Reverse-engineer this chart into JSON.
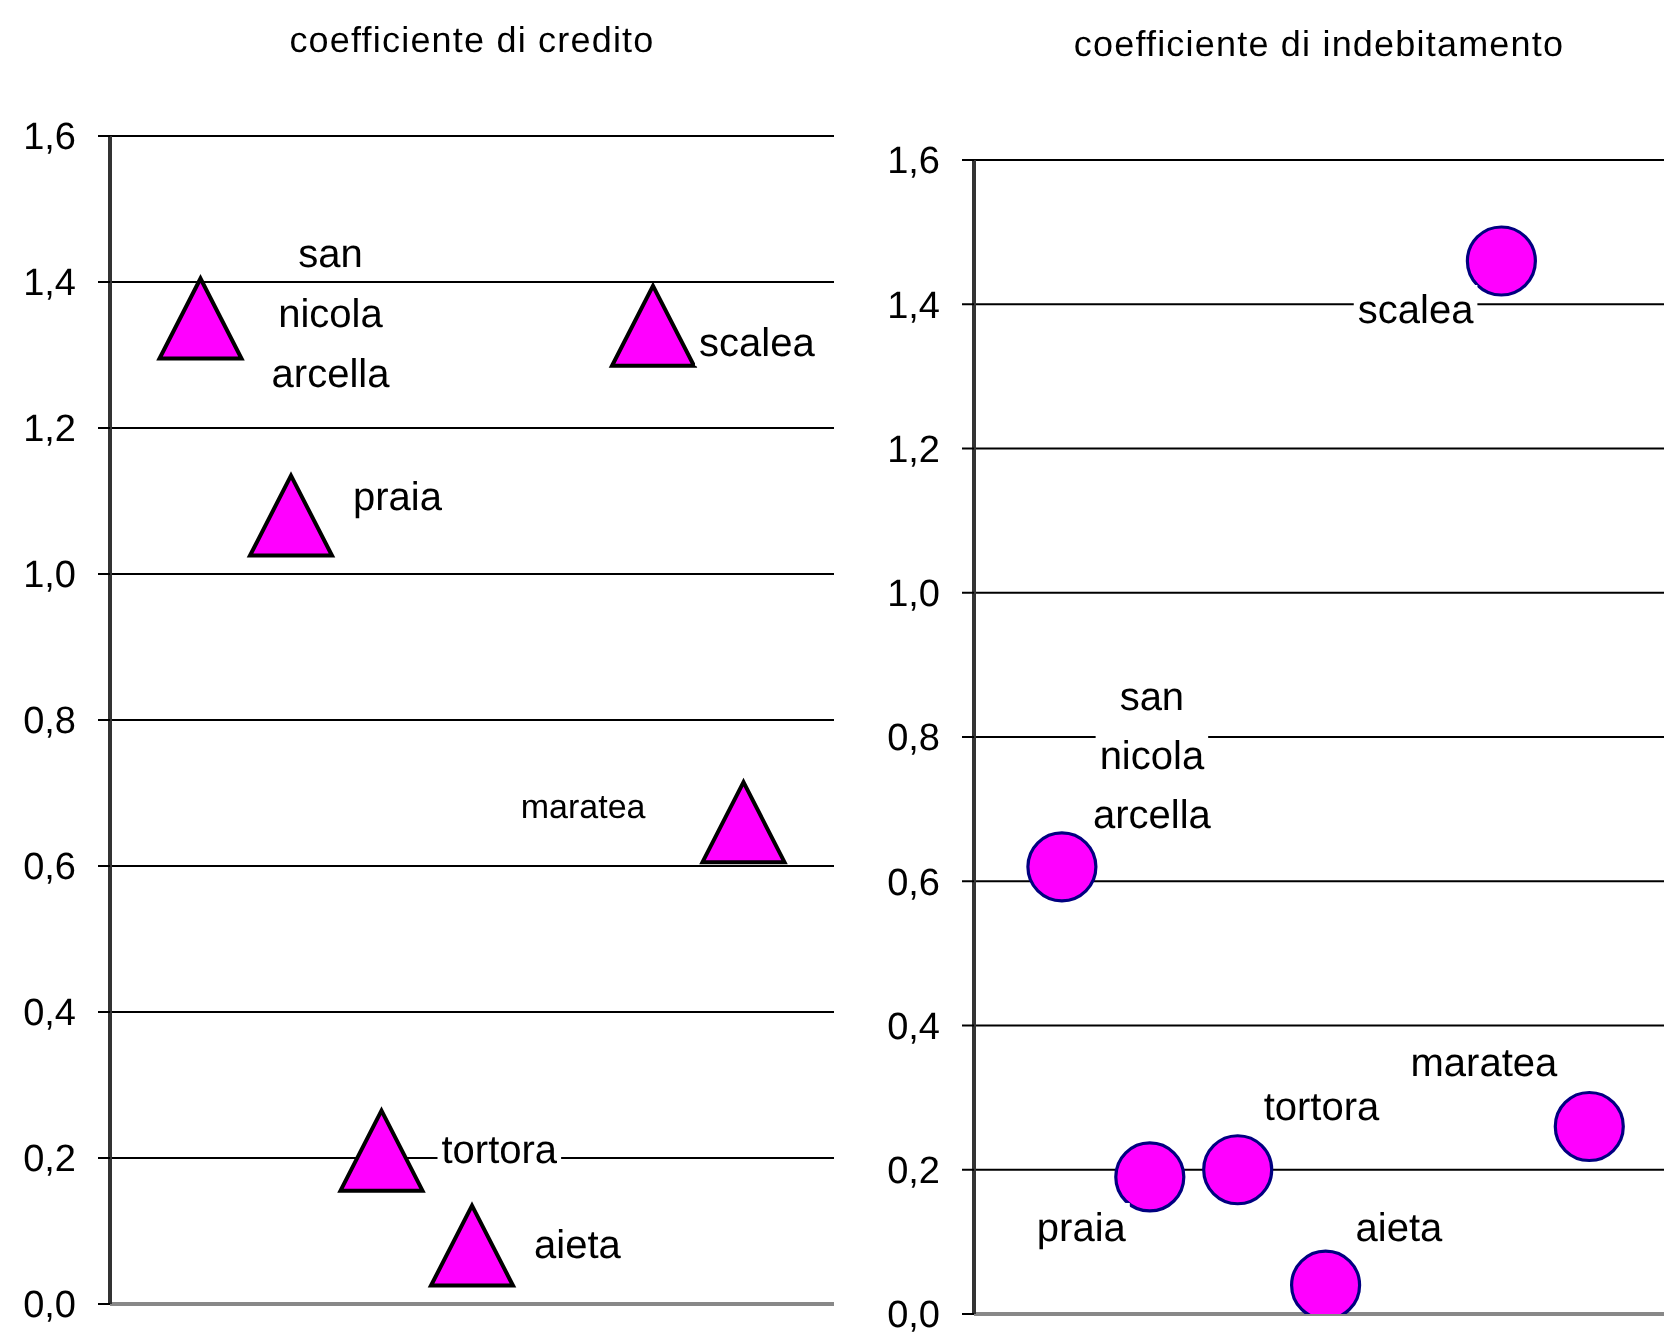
{
  "chart_data": [
    {
      "type": "scatter",
      "title": "coefficiente di credito",
      "categories": [
        null,
        null,
        null,
        null,
        null,
        null,
        null
      ],
      "series": [
        {
          "name": "san nicola arcella",
          "color": "#ff00ff",
          "values": [
            1.35,
            null,
            null,
            null,
            null,
            null,
            null
          ]
        },
        {
          "name": "praia",
          "color": "#ff00ff",
          "values": [
            null,
            1.08,
            null,
            null,
            null,
            null,
            null
          ]
        },
        {
          "name": "tortora",
          "color": "#ff00ff",
          "values": [
            null,
            null,
            0.21,
            null,
            null,
            null,
            null
          ]
        },
        {
          "name": "aieta",
          "color": "#ff00ff",
          "values": [
            null,
            null,
            null,
            0.08,
            null,
            null,
            null
          ]
        },
        {
          "name": "scalea",
          "color": "#ff00ff",
          "values": [
            null,
            null,
            null,
            null,
            null,
            1.34,
            null
          ]
        },
        {
          "name": "maratea",
          "color": "#ff00ff",
          "values": [
            null,
            null,
            null,
            null,
            null,
            null,
            0.66
          ]
        }
      ],
      "marker": "triangle",
      "ylim": [
        0,
        1.6
      ],
      "yticks": [
        {
          "value": 0,
          "label": "0,0"
        },
        {
          "value": 0.2,
          "label": "0,2"
        },
        {
          "value": 0.4,
          "label": "0,4"
        },
        {
          "value": 0.6,
          "label": "0,6"
        },
        {
          "value": 0.8,
          "label": "0,8"
        },
        {
          "value": 1,
          "label": "1,0"
        },
        {
          "value": 1.2,
          "label": "1,2"
        },
        {
          "value": 1.4,
          "label": "1,4"
        },
        {
          "value": 1.6,
          "label": "1,6"
        }
      ],
      "grid": "y"
    },
    {
      "type": "scatter",
      "title": "coefficiente di indebitamento",
      "categories": [
        null,
        null,
        null,
        null,
        null,
        null,
        null
      ],
      "series": [
        {
          "name": "san nicola arcella",
          "color": "#ff00ff",
          "values": [
            0.62,
            null,
            null,
            null,
            null,
            null,
            null
          ]
        },
        {
          "name": "praia",
          "color": "#ff00ff",
          "values": [
            null,
            0.19,
            null,
            null,
            null,
            null,
            null
          ]
        },
        {
          "name": "tortora",
          "color": "#ff00ff",
          "values": [
            null,
            null,
            0.2,
            null,
            null,
            null,
            null
          ]
        },
        {
          "name": "aieta",
          "color": "#ff00ff",
          "values": [
            null,
            null,
            null,
            0.04,
            null,
            null,
            null
          ]
        },
        {
          "name": "scalea",
          "color": "#ff00ff",
          "values": [
            null,
            null,
            null,
            null,
            null,
            1.46,
            null
          ]
        },
        {
          "name": "maratea",
          "color": "#ff00ff",
          "values": [
            null,
            null,
            null,
            null,
            null,
            null,
            0.26
          ]
        }
      ],
      "marker": "circle",
      "ylim": [
        0,
        1.6
      ],
      "yticks": [
        {
          "value": 0,
          "label": "0,0"
        },
        {
          "value": 0.2,
          "label": "0,2"
        },
        {
          "value": 0.4,
          "label": "0,4"
        },
        {
          "value": 0.6,
          "label": "0,6"
        },
        {
          "value": 0.8,
          "label": "0,8"
        },
        {
          "value": 1,
          "label": "1,0"
        },
        {
          "value": 1.2,
          "label": "1,2"
        },
        {
          "value": 1.4,
          "label": "1,4"
        },
        {
          "value": 1.6,
          "label": "1,6"
        }
      ],
      "grid": "y"
    }
  ]
}
